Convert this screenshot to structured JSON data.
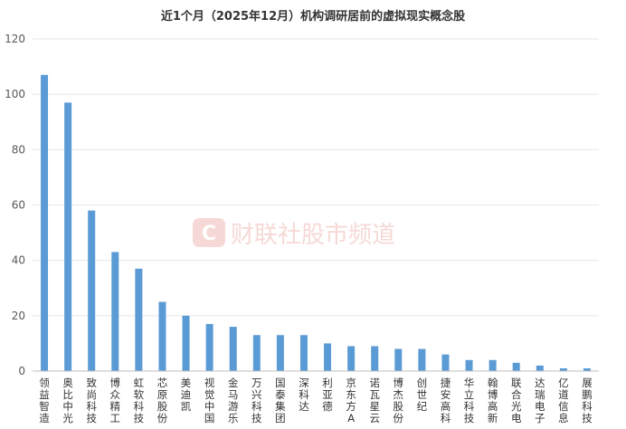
{
  "chart_data": {
    "type": "bar",
    "title": "近1个月（2025年12月）机构调研居前的虚拟现实概念股",
    "xlabel": "",
    "ylabel": "",
    "ylim": [
      0,
      120
    ],
    "yticks": [
      0,
      20,
      40,
      60,
      80,
      100,
      120
    ],
    "grid": true,
    "legend": "none",
    "categories": [
      "领益智造",
      "奥比中光",
      "致尚科技",
      "博众精工",
      "虹软科技",
      "芯原股份",
      "美迪凯",
      "视觉中国",
      "金马游乐",
      "万兴科技",
      "国泰集团",
      "深科达",
      "利亚德",
      "京东方A",
      "诺瓦星云",
      "博杰股份",
      "创世纪",
      "捷安高科",
      "华立科技",
      "翰博高新",
      "联合光电",
      "达瑞电子",
      "亿道信息",
      "展鹏科技"
    ],
    "values": [
      107,
      97,
      58,
      43,
      37,
      25,
      20,
      17,
      16,
      13,
      13,
      13,
      10,
      9,
      9,
      8,
      8,
      6,
      4,
      4,
      3,
      2,
      1,
      1
    ],
    "colors": {
      "bar": "#5b9bd5"
    }
  },
  "watermark": {
    "text": "财联社股市频道",
    "logo_glyph": "C",
    "logo_color": "#e8473c"
  }
}
